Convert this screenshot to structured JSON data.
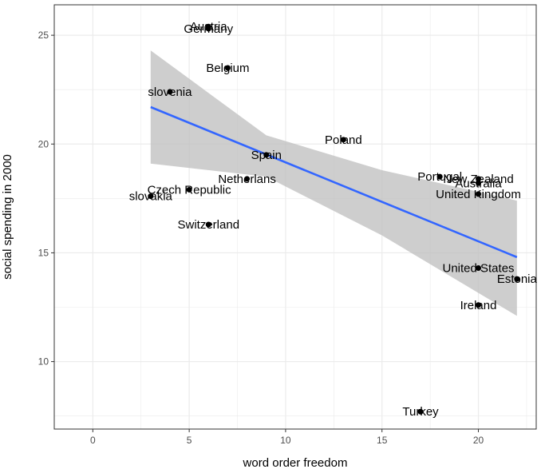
{
  "chart_data": {
    "type": "scatter",
    "xlabel": "word order freedom",
    "ylabel": "social spending in 2000",
    "xlim": [
      -2,
      23
    ],
    "ylim": [
      6.9,
      26.4
    ],
    "x_ticks": [
      0,
      5,
      10,
      15,
      20
    ],
    "y_ticks": [
      10,
      15,
      20,
      25
    ],
    "x_tick_labels": [
      "0",
      "5",
      "10",
      "15",
      "20"
    ],
    "y_tick_labels": [
      "10",
      "15",
      "20",
      "25"
    ],
    "grid": true,
    "points": [
      {
        "label": "Austria",
        "x": 6,
        "y": 25.4
      },
      {
        "label": "Germany",
        "x": 6,
        "y": 25.3
      },
      {
        "label": "Belgium",
        "x": 7,
        "y": 23.5
      },
      {
        "label": "slovenia",
        "x": 4,
        "y": 22.4
      },
      {
        "label": "Poland",
        "x": 13,
        "y": 20.2
      },
      {
        "label": "Spain",
        "x": 9,
        "y": 19.5
      },
      {
        "label": "Netherlans",
        "x": 8,
        "y": 18.4
      },
      {
        "label": "Czech Republic",
        "x": 5,
        "y": 17.9
      },
      {
        "label": "slovakia",
        "x": 3,
        "y": 17.6
      },
      {
        "label": "Switzerland",
        "x": 6,
        "y": 16.3
      },
      {
        "label": "Portugal",
        "x": 18,
        "y": 18.5
      },
      {
        "label": "New Zealand",
        "x": 20,
        "y": 18.4
      },
      {
        "label": "Australia",
        "x": 20,
        "y": 18.2
      },
      {
        "label": "United Kingdom",
        "x": 20,
        "y": 17.7
      },
      {
        "label": "United States",
        "x": 20,
        "y": 14.3
      },
      {
        "label": "Estonia",
        "x": 22,
        "y": 13.8
      },
      {
        "label": "Ireland",
        "x": 20,
        "y": 12.6
      },
      {
        "label": "Turkey",
        "x": 17,
        "y": 7.7
      }
    ],
    "trend": {
      "x": [
        3,
        22
      ],
      "y": [
        21.7,
        14.8
      ],
      "ci_x": [
        3,
        9,
        15,
        22
      ],
      "ci_upper": [
        24.3,
        20.4,
        18.8,
        17.4
      ],
      "ci_lower": [
        19.1,
        18.5,
        15.8,
        12.1
      ],
      "line_color": "#3366ff",
      "band_color": "#bdbdbd"
    },
    "panel_background": "#ffffff",
    "grid_color": "#ebebeb",
    "point_color": "#000000"
  }
}
